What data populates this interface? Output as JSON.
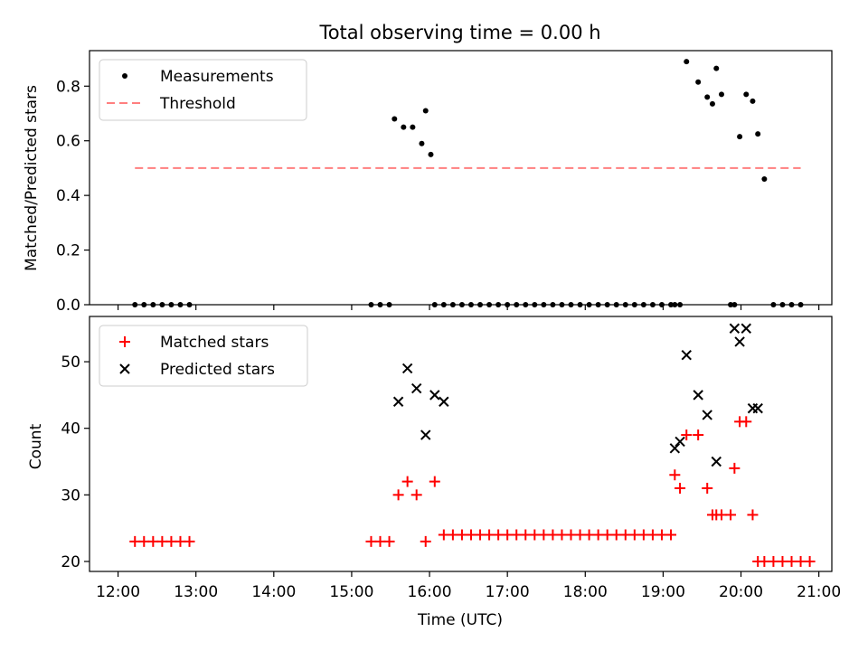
{
  "chart_data": [
    {
      "type": "scatter",
      "title": "Total observing time = 0.00 h",
      "xlabel": "",
      "ylabel": "Matched/Predicted stars",
      "xlim": [
        "12:00",
        "21:00"
      ],
      "ylim": [
        0,
        0.93
      ],
      "yticks": [
        "0.0",
        "0.2",
        "0.4",
        "0.6",
        "0.8"
      ],
      "legend": {
        "placement": "top-left",
        "entries": [
          "Measurements",
          "Threshold"
        ]
      },
      "series": [
        {
          "name": "Measurements",
          "color": "#000000",
          "marker": "dot",
          "x": [
            "12:13",
            "12:20",
            "12:27",
            "12:34",
            "12:41",
            "12:48",
            "12:55",
            "15:15",
            "15:22",
            "15:29",
            "15:33",
            "15:40",
            "15:47",
            "15:54",
            "16:01",
            "15:57",
            "16:04",
            "16:11",
            "16:18",
            "16:25",
            "16:32",
            "16:39",
            "16:46",
            "16:53",
            "17:00",
            "17:07",
            "17:14",
            "17:21",
            "17:28",
            "17:35",
            "17:42",
            "17:49",
            "17:56",
            "18:03",
            "18:10",
            "18:17",
            "18:24",
            "18:31",
            "18:38",
            "18:45",
            "18:52",
            "18:59",
            "19:06",
            "19:09",
            "19:13",
            "19:18",
            "19:27",
            "19:34",
            "19:41",
            "19:38",
            "19:45",
            "19:52",
            "19:55",
            "19:59",
            "20:04",
            "20:09",
            "20:13",
            "20:18",
            "20:25",
            "20:32",
            "20:39",
            "20:46"
          ],
          "y": [
            0,
            0,
            0,
            0,
            0,
            0,
            0,
            0,
            0,
            0,
            0.68,
            0.65,
            0.65,
            0.59,
            0.55,
            0.71,
            0,
            0,
            0,
            0,
            0,
            0,
            0,
            0,
            0,
            0,
            0,
            0,
            0,
            0,
            0,
            0,
            0,
            0,
            0,
            0,
            0,
            0,
            0,
            0,
            0,
            0,
            0,
            0,
            0,
            0.89,
            0.815,
            0.76,
            0.865,
            0.735,
            0.77,
            0,
            0,
            0.615,
            0.77,
            0.745,
            0.625,
            0.46,
            0,
            0,
            0,
            0
          ]
        },
        {
          "name": "Threshold",
          "color": "#ff7f7f",
          "style": "dashed",
          "x": [
            "12:13",
            "20:46"
          ],
          "y": [
            0.5,
            0.5
          ]
        }
      ]
    },
    {
      "type": "scatter",
      "title": "",
      "xlabel": "Time (UTC)",
      "ylabel": "Count",
      "xlim": [
        "12:00",
        "21:00"
      ],
      "ylim": [
        18.5,
        56.8
      ],
      "xticks": [
        "12:00",
        "13:00",
        "14:00",
        "15:00",
        "16:00",
        "17:00",
        "18:00",
        "19:00",
        "20:00",
        "21:00"
      ],
      "yticks": [
        "20",
        "30",
        "40",
        "50"
      ],
      "legend": {
        "placement": "top-left",
        "entries": [
          "Matched stars",
          "Predicted stars"
        ]
      },
      "series": [
        {
          "name": "Matched stars",
          "color": "#ff0000",
          "marker": "plus",
          "x": [
            "12:13",
            "12:20",
            "12:27",
            "12:34",
            "12:41",
            "12:48",
            "12:55",
            "15:15",
            "15:22",
            "15:29",
            "15:36",
            "15:43",
            "15:50",
            "15:57",
            "16:04",
            "16:11",
            "16:18",
            "16:25",
            "16:32",
            "16:39",
            "16:46",
            "16:53",
            "17:00",
            "17:07",
            "17:14",
            "17:21",
            "17:28",
            "17:35",
            "17:42",
            "17:49",
            "17:56",
            "18:03",
            "18:10",
            "18:17",
            "18:24",
            "18:31",
            "18:38",
            "18:45",
            "18:52",
            "18:59",
            "19:06",
            "19:09",
            "19:13",
            "19:18",
            "19:27",
            "19:34",
            "19:41",
            "19:38",
            "19:45",
            "19:52",
            "19:55",
            "19:59",
            "20:04",
            "20:09",
            "20:13",
            "20:18",
            "20:25",
            "20:32",
            "20:39",
            "20:46",
            "20:53"
          ],
          "y": [
            23,
            23,
            23,
            23,
            23,
            23,
            23,
            23,
            23,
            23,
            30,
            32,
            30,
            23,
            32,
            24,
            24,
            24,
            24,
            24,
            24,
            24,
            24,
            24,
            24,
            24,
            24,
            24,
            24,
            24,
            24,
            24,
            24,
            24,
            24,
            24,
            24,
            24,
            24,
            24,
            24,
            33,
            31,
            39,
            39,
            31,
            27,
            27,
            27,
            27,
            34,
            41,
            41,
            27,
            20,
            20,
            20,
            20,
            20,
            20,
            20
          ]
        },
        {
          "name": "Predicted stars",
          "color": "#000000",
          "marker": "x",
          "x": [
            "15:36",
            "15:43",
            "15:50",
            "15:57",
            "16:04",
            "16:11",
            "19:09",
            "19:13",
            "19:18",
            "19:27",
            "19:34",
            "19:41",
            "19:55",
            "19:59",
            "20:04",
            "20:09",
            "20:13"
          ],
          "y": [
            44,
            49,
            46,
            39,
            45,
            44,
            37,
            38,
            51,
            45,
            42,
            35,
            55,
            53,
            55,
            43,
            43
          ]
        }
      ]
    }
  ]
}
